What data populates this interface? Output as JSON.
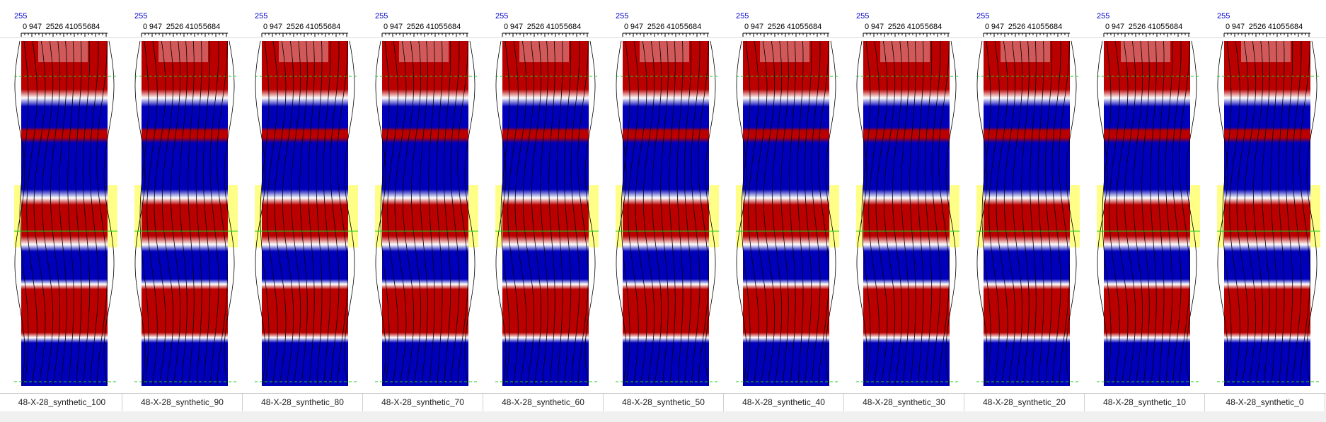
{
  "header": {
    "max_amplitude_label": "255",
    "scale_ticks": [
      "0",
      "947",
      "2526",
      "4105",
      "5684"
    ]
  },
  "colors": {
    "positive": "#bb0000",
    "negative": "#0000bb",
    "zone_highlight": "#ffff88",
    "marker_line": "#22cc22",
    "axis_label": "#0000cc"
  },
  "panels": [
    {
      "label": "48-X-28_synthetic_100",
      "percent": 100
    },
    {
      "label": "48-X-28_synthetic_90",
      "percent": 90
    },
    {
      "label": "48-X-28_synthetic_80",
      "percent": 80
    },
    {
      "label": "48-X-28_synthetic_70",
      "percent": 70
    },
    {
      "label": "48-X-28_synthetic_60",
      "percent": 60
    },
    {
      "label": "48-X-28_synthetic_50",
      "percent": 50
    },
    {
      "label": "48-X-28_synthetic_40",
      "percent": 40
    },
    {
      "label": "48-X-28_synthetic_30",
      "percent": 30
    },
    {
      "label": "48-X-28_synthetic_20",
      "percent": 20
    },
    {
      "label": "48-X-28_synthetic_10",
      "percent": 10
    },
    {
      "label": "48-X-28_synthetic_0",
      "percent": 0
    }
  ]
}
